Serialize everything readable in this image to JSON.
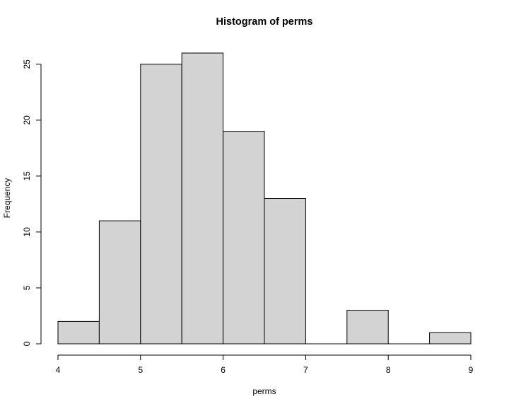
{
  "chart_data": {
    "type": "bar",
    "title": "Histogram of perms",
    "xlabel": "perms",
    "ylabel": "Frequency",
    "bins": [
      {
        "start": 4.0,
        "end": 4.5,
        "count": 2
      },
      {
        "start": 4.5,
        "end": 5.0,
        "count": 11
      },
      {
        "start": 5.0,
        "end": 5.5,
        "count": 25
      },
      {
        "start": 5.5,
        "end": 6.0,
        "count": 26
      },
      {
        "start": 6.0,
        "end": 6.5,
        "count": 19
      },
      {
        "start": 6.5,
        "end": 7.0,
        "count": 13
      },
      {
        "start": 7.0,
        "end": 7.5,
        "count": 0
      },
      {
        "start": 7.5,
        "end": 8.0,
        "count": 3
      },
      {
        "start": 8.0,
        "end": 8.5,
        "count": 0
      },
      {
        "start": 8.5,
        "end": 9.0,
        "count": 1
      }
    ],
    "xlim": [
      4,
      9
    ],
    "ylim": [
      0,
      26
    ],
    "x_ticks": [
      "4",
      "5",
      "6",
      "7",
      "8",
      "9"
    ],
    "y_ticks": [
      "0",
      "5",
      "10",
      "15",
      "20",
      "25"
    ],
    "grid": false,
    "bar_fill": "#d3d3d3",
    "bar_stroke": "#000000"
  }
}
